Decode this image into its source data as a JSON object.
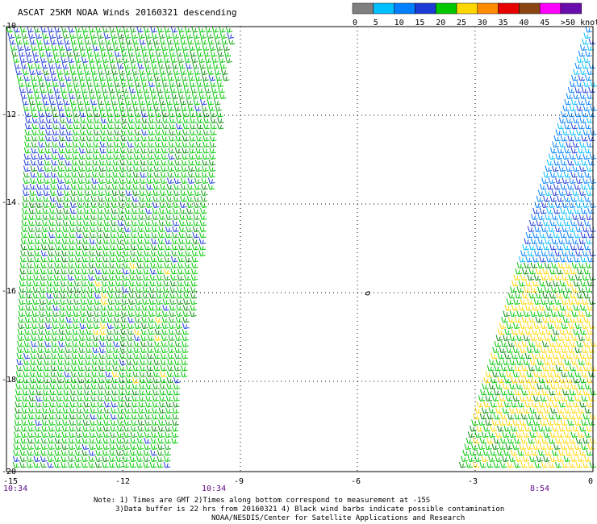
{
  "title": "ASCAT 25KM NOAA Winds 20160321 descending",
  "legend": {
    "labels": [
      "0",
      "5",
      "10",
      "15",
      "20",
      "25",
      "30",
      "35",
      "40",
      "45",
      ">50 knots"
    ],
    "colors": [
      "#7f7f7f",
      "#00bfff",
      "#0080ff",
      "#1d3bd6",
      "#00c800",
      "#ffd700",
      "#ff8c00",
      "#e60000",
      "#8b4513",
      "#ff00ff",
      "#6a0dad"
    ]
  },
  "map": {
    "lat_labels": [
      "-10",
      "-12",
      "-14",
      "-16",
      "-18",
      "-20"
    ],
    "lon_labels": [
      "-15",
      "-12",
      "-9",
      "-6",
      "-3",
      "0"
    ],
    "time_labels": [
      "10:34",
      "10:34",
      "8:54"
    ],
    "island_symbol": "island-outline",
    "swath_colors": {
      "west": [
        "#00c800",
        "#19a519",
        "#1d3bd6",
        "#0a8a0a"
      ],
      "east_north": [
        "#0080ff",
        "#00bfff",
        "#1d3bd6"
      ],
      "east_south": [
        "#00c800",
        "#ffd700",
        "#0a8a0a"
      ]
    }
  },
  "notes": {
    "line1": "Note: 1) Times are GMT 2)Times along bottom correspond to measurement at -15S",
    "line2": "3)Data buffer is 22 hrs from 20160321 4) Black wind barbs indicate possible contamination",
    "line3": "NOAA/NESDIS/Center for Satellite Applications and Research"
  }
}
